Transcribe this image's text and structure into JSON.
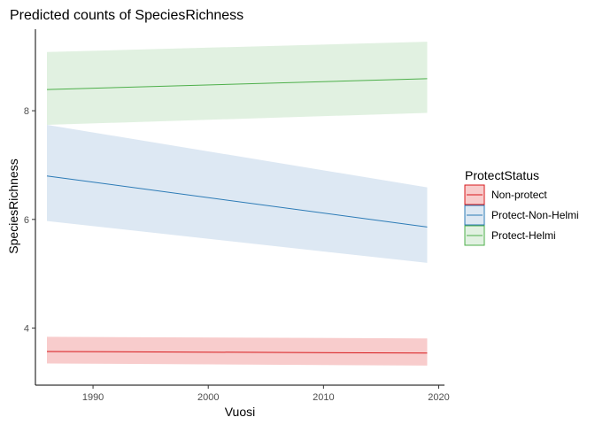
{
  "chart_data": {
    "type": "line",
    "title": "Predicted counts of SpeciesRichness",
    "xlabel": "Vuosi",
    "ylabel": "SpeciesRichness",
    "xlim": [
      1985,
      2020.5
    ],
    "ylim": [
      2.95,
      9.5
    ],
    "xticks": [
      1990,
      2000,
      2010,
      2020
    ],
    "yticks": [
      4,
      6,
      8
    ],
    "grid": false,
    "legend": {
      "title": "ProtectStatus",
      "placement": "right"
    },
    "series": [
      {
        "name": "Non-protect",
        "color": "#d7191c",
        "fill": "#f8cccc",
        "x": [
          1986,
          2019
        ],
        "y": [
          3.57,
          3.54
        ],
        "lower": [
          3.35,
          3.31
        ],
        "upper": [
          3.84,
          3.81
        ]
      },
      {
        "name": "Protect-Non-Helmi",
        "color": "#2c7bb6",
        "fill": "#dde8f3",
        "x": [
          1986,
          2019
        ],
        "y": [
          6.8,
          5.86
        ],
        "lower": [
          5.97,
          5.2
        ],
        "upper": [
          7.74,
          6.59
        ]
      },
      {
        "name": "Protect-Helmi",
        "color": "#4daf4a",
        "fill": "#e1f1e1",
        "x": [
          1986,
          2019
        ],
        "y": [
          8.39,
          8.59
        ],
        "lower": [
          7.74,
          7.96
        ],
        "upper": [
          9.08,
          9.27
        ]
      }
    ]
  }
}
